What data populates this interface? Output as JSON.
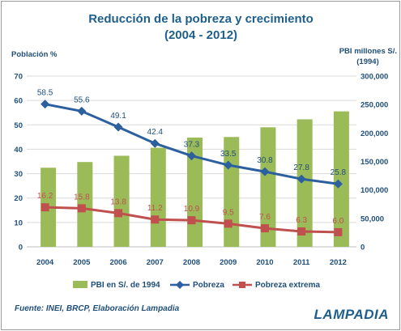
{
  "chart_data": {
    "type": "bar",
    "title": "Reducción de la pobreza y crecimiento",
    "subtitle": "(2004 - 2012)",
    "left_axis_title": "Población %",
    "right_axis_title_line1": "PBI millones S/.",
    "right_axis_title_line2": "(1994)",
    "categories": [
      "2004",
      "2005",
      "2006",
      "2007",
      "2008",
      "2009",
      "2010",
      "2011",
      "2012"
    ],
    "ylim_left": [
      0,
      70
    ],
    "yticks_left": [
      "0",
      "10",
      "20",
      "30",
      "40",
      "50",
      "60",
      "70"
    ],
    "ylim_right": [
      0,
      300000
    ],
    "yticks_right": [
      "0",
      "50,000",
      "100,000",
      "150,000",
      "200,000",
      "250,000",
      "300,000"
    ],
    "grid": true,
    "legend_position": "bottom",
    "series": [
      {
        "name": "PBI en S/. de 1994",
        "kind": "bar",
        "axis": "right",
        "color": "#9bbb59",
        "values": [
          139000,
          149000,
          160000,
          174000,
          192000,
          193000,
          210000,
          224000,
          238000
        ]
      },
      {
        "name": "Pobreza",
        "kind": "line",
        "axis": "left",
        "color": "#2c5f9e",
        "marker": "diamond",
        "values": [
          58.5,
          55.6,
          49.1,
          42.4,
          37.3,
          33.5,
          30.8,
          27.8,
          25.8
        ],
        "labels": [
          "58.5",
          "55.6",
          "49.1",
          "42.4",
          "37.3",
          "33.5",
          "30.8",
          "27.8",
          "25.8"
        ]
      },
      {
        "name": "Pobreza extrema",
        "kind": "line",
        "axis": "left",
        "color": "#c0504d",
        "marker": "square",
        "values": [
          16.2,
          15.8,
          13.8,
          11.2,
          10.9,
          9.5,
          7.6,
          6.3,
          6.0
        ],
        "labels": [
          "16.2",
          "15.8",
          "13.8",
          "11.2",
          "10.9",
          "9.5",
          "7.6",
          "6.3",
          "6.0"
        ]
      }
    ]
  },
  "source": "Fuente: INEI, BRCP, Elaboración Lampadia",
  "logo_text": "LAMPADIA"
}
